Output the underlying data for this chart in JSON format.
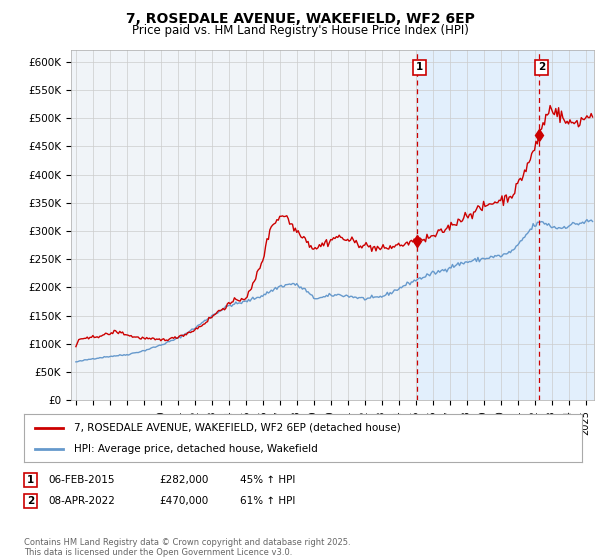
{
  "title": "7, ROSEDALE AVENUE, WAKEFIELD, WF2 6EP",
  "subtitle": "Price paid vs. HM Land Registry's House Price Index (HPI)",
  "title_fontsize": 10,
  "subtitle_fontsize": 8.5,
  "ylabel_ticks": [
    "£0",
    "£50K",
    "£100K",
    "£150K",
    "£200K",
    "£250K",
    "£300K",
    "£350K",
    "£400K",
    "£450K",
    "£500K",
    "£550K",
    "£600K"
  ],
  "ytick_values": [
    0,
    50000,
    100000,
    150000,
    200000,
    250000,
    300000,
    350000,
    400000,
    450000,
    500000,
    550000,
    600000
  ],
  "ylim": [
    0,
    620000
  ],
  "xlim_start": 1994.7,
  "xlim_end": 2025.5,
  "grid_color": "#cccccc",
  "background_color": "#ffffff",
  "plot_background": "#f0f4f8",
  "highlight_bg": "#ddeeff",
  "red_line_color": "#cc0000",
  "blue_line_color": "#6699cc",
  "annotation_line_color": "#cc0000",
  "marker1_x": 2015.08,
  "marker1_y": 282000,
  "marker2_x": 2022.27,
  "marker2_y": 470000,
  "highlight_start": 2015.08,
  "highlight_end": 2025.5,
  "marker1_label": "1",
  "marker2_label": "2",
  "legend_label_red": "7, ROSEDALE AVENUE, WAKEFIELD, WF2 6EP (detached house)",
  "legend_label_blue": "HPI: Average price, detached house, Wakefield",
  "table_row1": [
    "1",
    "06-FEB-2015",
    "£282,000",
    "45% ↑ HPI"
  ],
  "table_row2": [
    "2",
    "08-APR-2022",
    "£470,000",
    "61% ↑ HPI"
  ],
  "footer": "Contains HM Land Registry data © Crown copyright and database right 2025.\nThis data is licensed under the Open Government Licence v3.0."
}
